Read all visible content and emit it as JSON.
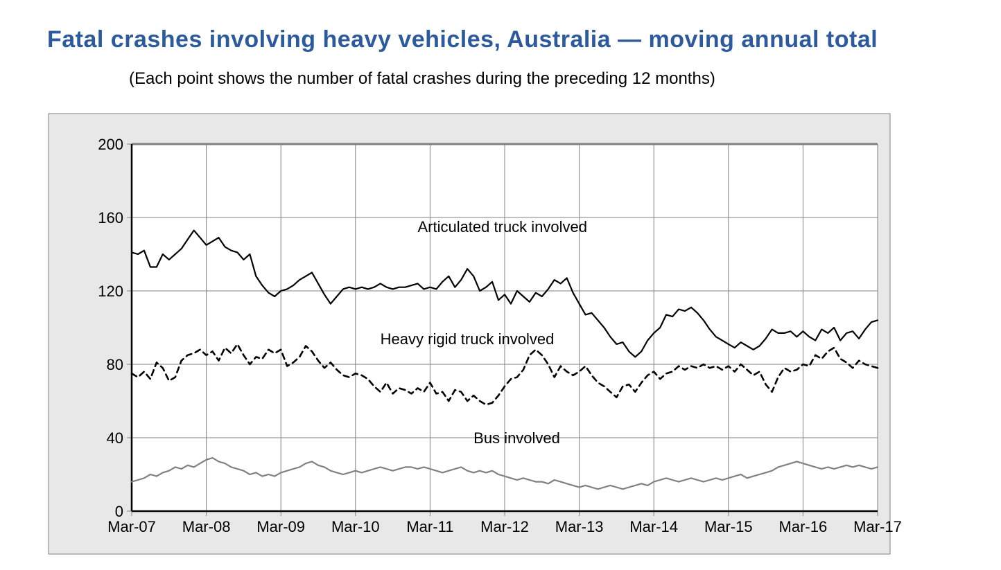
{
  "title": "Fatal crashes involving heavy vehicles, Australia — moving annual total",
  "subtitle": "(Each point shows the number of fatal crashes during the preceding 12 months)",
  "chart": {
    "type": "line",
    "outer_bg": "#e8e8e8",
    "plot_bg": "#ffffff",
    "outer_border": "#808080",
    "plot_border_top": "#808080",
    "grid_color": "#808080",
    "tick_color": "#808080",
    "axis_color": "#000000",
    "label_color": "#000000",
    "tick_fontsize": 22,
    "series_label_fontsize": 22,
    "x": {
      "start": 0,
      "end": 120,
      "tick_labels": [
        "Mar-07",
        "Mar-08",
        "Mar-09",
        "Mar-10",
        "Mar-11",
        "Mar-12",
        "Mar-13",
        "Mar-14",
        "Mar-15",
        "Mar-16",
        "Mar-17"
      ],
      "tick_positions": [
        0,
        12,
        24,
        36,
        48,
        60,
        72,
        84,
        96,
        108,
        120
      ]
    },
    "y": {
      "min": 0,
      "max": 200,
      "ticks": [
        0,
        40,
        80,
        120,
        160,
        200
      ]
    },
    "series": [
      {
        "name": "Articulated truck involved",
        "label": "Articulated truck involved",
        "label_pos": {
          "x": 46,
          "y": 152
        },
        "color": "#000000",
        "width": 2.2,
        "dash": "none",
        "data": [
          141,
          140,
          142,
          133,
          133,
          140,
          137,
          140,
          143,
          148,
          153,
          149,
          145,
          147,
          149,
          144,
          142,
          141,
          137,
          140,
          128,
          123,
          119,
          117,
          120,
          121,
          123,
          126,
          128,
          130,
          124,
          118,
          113,
          117,
          121,
          122,
          121,
          122,
          121,
          122,
          124,
          122,
          121,
          122,
          122,
          123,
          124,
          121,
          122,
          121,
          125,
          128,
          122,
          126,
          132,
          128,
          120,
          122,
          125,
          115,
          118,
          113,
          120,
          117,
          114,
          119,
          117,
          121,
          126,
          124,
          127,
          119,
          113,
          107,
          108,
          104,
          100,
          95,
          91,
          92,
          87,
          84,
          87,
          93,
          97,
          100,
          107,
          106,
          110,
          109,
          111,
          108,
          104,
          99,
          95,
          93,
          91,
          89,
          92,
          90,
          88,
          90,
          94,
          99,
          97,
          97,
          98,
          95,
          98,
          95,
          93,
          99,
          97,
          100,
          93,
          97,
          98,
          94,
          99,
          103,
          104
        ]
      },
      {
        "name": "Heavy rigid truck involved",
        "label": "Heavy rigid truck involved",
        "label_pos": {
          "x": 40,
          "y": 91
        },
        "color": "#000000",
        "width": 2.6,
        "dash": "8,6",
        "data": [
          75,
          73,
          76,
          72,
          81,
          78,
          71,
          73,
          82,
          85,
          86,
          88,
          85,
          87,
          82,
          89,
          86,
          91,
          85,
          80,
          84,
          83,
          88,
          86,
          88,
          79,
          81,
          84,
          90,
          87,
          82,
          78,
          81,
          77,
          74,
          73,
          75,
          74,
          72,
          68,
          65,
          70,
          64,
          67,
          66,
          64,
          67,
          65,
          70,
          64,
          65,
          60,
          66,
          65,
          60,
          63,
          60,
          58,
          59,
          63,
          68,
          72,
          73,
          77,
          85,
          88,
          85,
          80,
          73,
          79,
          76,
          74,
          76,
          79,
          74,
          70,
          68,
          65,
          62,
          68,
          69,
          65,
          70,
          74,
          76,
          72,
          75,
          76,
          79,
          77,
          79,
          78,
          80,
          78,
          79,
          77,
          79,
          76,
          80,
          77,
          74,
          76,
          69,
          65,
          73,
          78,
          76,
          77,
          80,
          79,
          85,
          83,
          87,
          89,
          83,
          81,
          78,
          82,
          80,
          79,
          78
        ]
      },
      {
        "name": "Bus involved",
        "label": "Bus involved",
        "label_pos": {
          "x": 55,
          "y": 37
        },
        "color": "#808080",
        "width": 2.2,
        "dash": "none",
        "data": [
          16,
          17,
          18,
          20,
          19,
          21,
          22,
          24,
          23,
          25,
          24,
          26,
          28,
          29,
          27,
          26,
          24,
          23,
          22,
          20,
          21,
          19,
          20,
          19,
          21,
          22,
          23,
          24,
          26,
          27,
          25,
          24,
          22,
          21,
          20,
          21,
          22,
          21,
          22,
          23,
          24,
          23,
          22,
          23,
          24,
          24,
          23,
          24,
          23,
          22,
          21,
          22,
          23,
          24,
          22,
          21,
          22,
          21,
          22,
          20,
          19,
          18,
          17,
          18,
          17,
          16,
          16,
          15,
          17,
          16,
          15,
          14,
          13,
          14,
          13,
          12,
          13,
          14,
          13,
          12,
          13,
          14,
          15,
          14,
          16,
          17,
          18,
          17,
          16,
          17,
          18,
          17,
          16,
          17,
          18,
          17,
          18,
          19,
          20,
          18,
          19,
          20,
          21,
          22,
          24,
          25,
          26,
          27,
          26,
          25,
          24,
          23,
          24,
          23,
          24,
          25,
          24,
          25,
          24,
          23,
          24
        ]
      }
    ]
  }
}
